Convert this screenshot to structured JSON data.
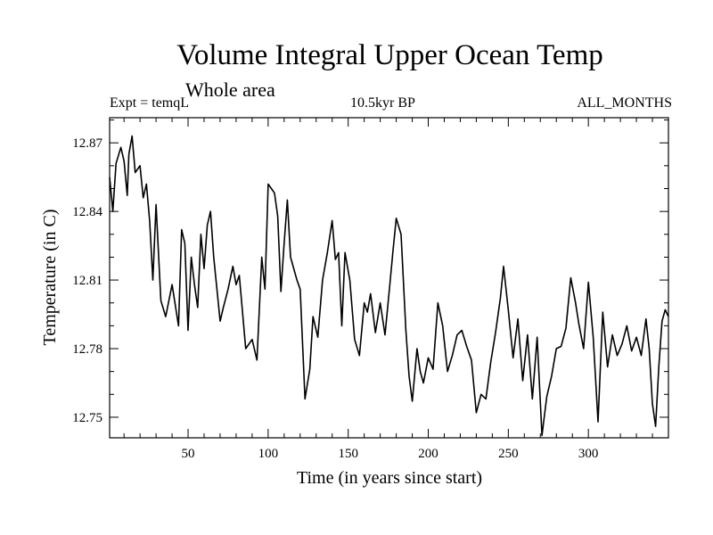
{
  "chart_data": {
    "type": "line",
    "title": "Volume Integral Upper Ocean Temp",
    "subtitle": "Whole area",
    "experiment": "Expt = temqL",
    "period": "10.5kyr BP",
    "months": "ALL_MONTHS",
    "xlabel": "Time (in years since start)",
    "ylabel": "Temperature (in C)",
    "xlim": [
      1,
      350
    ],
    "ylim": [
      12.741,
      12.881
    ],
    "xticks_major": [
      50,
      100,
      150,
      200,
      250,
      300
    ],
    "xticks_minor": [
      10,
      20,
      30,
      40,
      60,
      70,
      80,
      90,
      110,
      120,
      130,
      140,
      160,
      170,
      180,
      190,
      210,
      220,
      230,
      240,
      260,
      270,
      280,
      290,
      310,
      320,
      330,
      340
    ],
    "yticks_major": [
      12.75,
      12.78,
      12.81,
      12.84,
      12.87
    ],
    "yticks_minor": [
      12.76,
      12.77,
      12.79,
      12.8,
      12.82,
      12.83,
      12.85,
      12.86,
      12.88
    ],
    "ytick_labels": [
      "12.75",
      "12.78",
      "12.81",
      "12.84",
      "12.87"
    ],
    "series": [
      {
        "name": "temqL",
        "x": [
          1,
          3,
          5,
          8,
          10,
          12,
          13,
          15,
          17,
          20,
          22,
          24,
          26,
          28,
          30,
          33,
          36,
          40,
          44,
          46,
          48,
          50,
          52,
          54,
          56,
          58,
          60,
          62,
          64,
          66,
          70,
          72,
          75,
          78,
          80,
          82,
          86,
          90,
          93,
          96,
          98,
          100,
          102,
          104,
          106,
          108,
          110,
          112,
          114,
          118,
          120,
          123,
          126,
          128,
          131,
          134,
          137,
          140,
          142,
          144,
          146,
          148,
          151,
          154,
          157,
          160,
          162,
          164,
          167,
          170,
          173,
          176,
          178,
          180,
          183,
          186,
          188,
          190,
          193,
          195,
          197,
          200,
          203,
          206,
          209,
          212,
          215,
          218,
          221,
          224,
          227,
          230,
          233,
          236,
          239,
          242,
          245,
          247,
          250,
          253,
          256,
          259,
          262,
          265,
          268,
          271,
          274,
          277,
          280,
          283,
          286,
          289,
          292,
          294,
          297,
          300,
          303,
          306,
          309,
          312,
          315,
          318,
          321,
          324,
          327,
          330,
          333,
          336,
          338,
          340,
          342,
          344,
          346,
          348,
          350
        ],
        "values": [
          12.855,
          12.84,
          12.861,
          12.868,
          12.862,
          12.847,
          12.865,
          12.873,
          12.857,
          12.86,
          12.846,
          12.852,
          12.836,
          12.81,
          12.843,
          12.801,
          12.794,
          12.808,
          12.79,
          12.832,
          12.826,
          12.788,
          12.82,
          12.808,
          12.798,
          12.83,
          12.815,
          12.834,
          12.84,
          12.82,
          12.792,
          12.798,
          12.806,
          12.816,
          12.808,
          12.812,
          12.78,
          12.784,
          12.775,
          12.82,
          12.806,
          12.852,
          12.85,
          12.848,
          12.838,
          12.805,
          12.826,
          12.845,
          12.82,
          12.81,
          12.806,
          12.758,
          12.771,
          12.794,
          12.785,
          12.81,
          12.822,
          12.836,
          12.819,
          12.822,
          12.79,
          12.822,
          12.81,
          12.784,
          12.777,
          12.8,
          12.796,
          12.804,
          12.787,
          12.8,
          12.786,
          12.808,
          12.823,
          12.837,
          12.83,
          12.788,
          12.768,
          12.757,
          12.78,
          12.77,
          12.765,
          12.776,
          12.771,
          12.8,
          12.79,
          12.77,
          12.777,
          12.786,
          12.788,
          12.781,
          12.775,
          12.752,
          12.76,
          12.758,
          12.774,
          12.787,
          12.802,
          12.816,
          12.797,
          12.776,
          12.793,
          12.766,
          12.786,
          12.758,
          12.785,
          12.742,
          12.759,
          12.768,
          12.78,
          12.781,
          12.789,
          12.811,
          12.8,
          12.791,
          12.78,
          12.809,
          12.785,
          12.748,
          12.796,
          12.772,
          12.786,
          12.777,
          12.782,
          12.79,
          12.779,
          12.785,
          12.777,
          12.793,
          12.78,
          12.756,
          12.746,
          12.772,
          12.792,
          12.797,
          12.794
        ]
      }
    ]
  }
}
